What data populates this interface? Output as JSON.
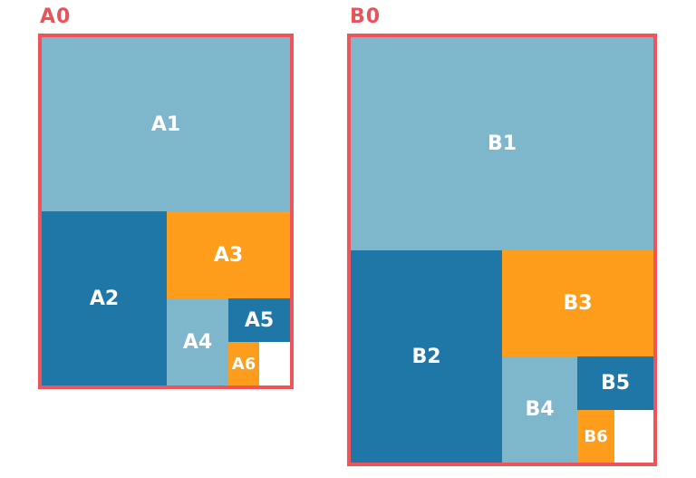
{
  "colors": {
    "frame": "#f0545b",
    "light_blue": "#7eb7cc",
    "dark_blue": "#1f77a8",
    "orange": "#fe9d1b",
    "label": "#e8545a"
  },
  "a_series": {
    "title": "A0",
    "sheets": [
      "A1",
      "A2",
      "A3",
      "A4",
      "A5",
      "A6"
    ]
  },
  "b_series": {
    "title": "B0",
    "sheets": [
      "B1",
      "B2",
      "B3",
      "B4",
      "B5",
      "B6"
    ]
  }
}
